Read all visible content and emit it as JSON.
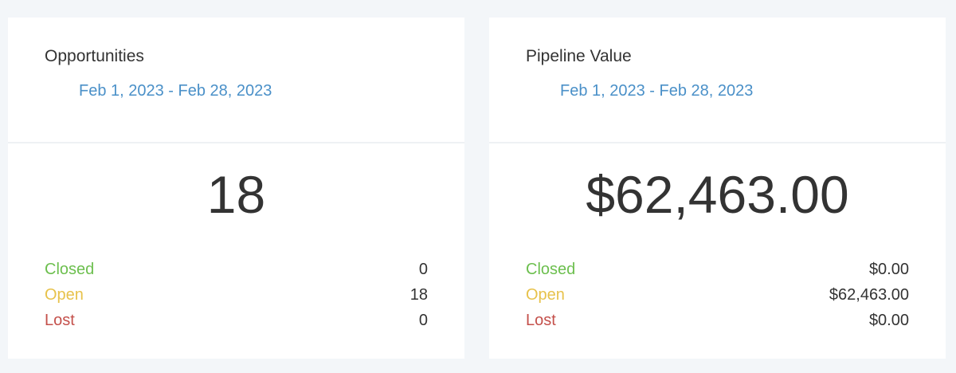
{
  "cards": [
    {
      "title": "Opportunities",
      "date_range": "Feb 1, 2023 - Feb 28, 2023",
      "total": "18",
      "rows": [
        {
          "label": "Closed",
          "value": "0"
        },
        {
          "label": "Open",
          "value": "18"
        },
        {
          "label": "Lost",
          "value": "0"
        }
      ]
    },
    {
      "title": "Pipeline Value",
      "date_range": "Feb 1, 2023 - Feb 28, 2023",
      "total": "$62,463.00",
      "rows": [
        {
          "label": "Closed",
          "value": "$0.00"
        },
        {
          "label": "Open",
          "value": "$62,463.00"
        },
        {
          "label": "Lost",
          "value": "$0.00"
        }
      ]
    }
  ]
}
